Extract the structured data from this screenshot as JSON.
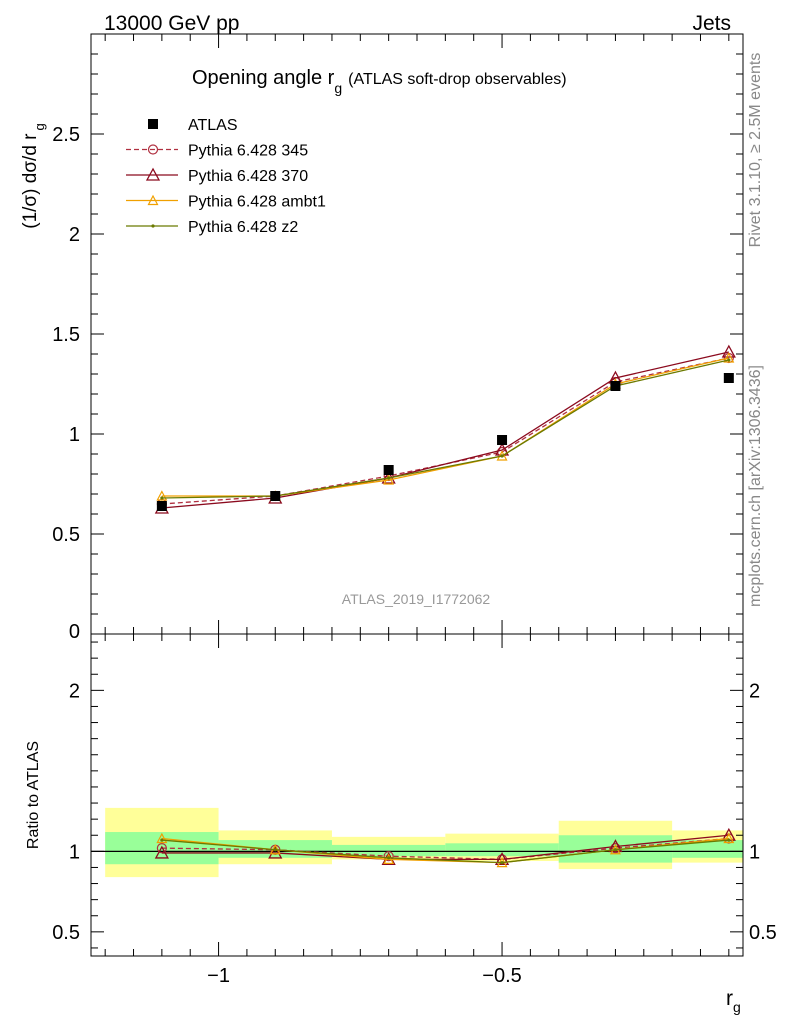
{
  "header": {
    "left": "13000 GeV pp",
    "right": "Jets"
  },
  "side_labels": {
    "rivet": "Rivet 3.1.10, ≥ 2.5M events",
    "mcplots": "mcplots.cern.ch [arXiv:1306.3436]"
  },
  "chart_data": [
    {
      "type": "line",
      "title_main": "Opening angle r",
      "title_sub": "g",
      "title_note": "(ATLAS soft-drop observables)",
      "ylabel": "(1/σ) dσ/d r",
      "ylabel_sub": "g",
      "watermark": "ATLAS_2019_I1772062",
      "xlim": [
        -1.225,
        -0.075
      ],
      "ylim": [
        0,
        3.0
      ],
      "yticks": [
        0.5,
        1,
        1.5,
        2,
        2.5
      ],
      "ytick_labels": [
        "0.5",
        "1",
        "1.5",
        "2",
        "2.5"
      ],
      "ylim_label_bottom": "0",
      "x": [
        -1.1,
        -0.9,
        -0.7,
        -0.5,
        -0.3,
        -0.1
      ],
      "data": {
        "name": "ATLAS",
        "values": [
          0.64,
          0.69,
          0.82,
          0.97,
          1.24,
          1.28
        ],
        "color": "#000000"
      },
      "series": [
        {
          "name": "Pythia 6.428 345",
          "values": [
            0.65,
            0.69,
            0.79,
            0.91,
            1.26,
            1.38
          ],
          "color": "#b03040",
          "style": "dashed-circle"
        },
        {
          "name": "Pythia 6.428 370",
          "values": [
            0.63,
            0.68,
            0.78,
            0.92,
            1.28,
            1.41
          ],
          "color": "#8b0a1e",
          "style": "solid-triangle"
        },
        {
          "name": "Pythia 6.428 ambt1",
          "values": [
            0.69,
            0.69,
            0.77,
            0.89,
            1.25,
            1.38
          ],
          "color": "#f0a000",
          "style": "solid-triangle-small"
        },
        {
          "name": "Pythia 6.428 z2",
          "values": [
            0.68,
            0.69,
            0.78,
            0.89,
            1.24,
            1.37
          ],
          "color": "#6b7a00",
          "style": "solid-dot"
        }
      ]
    },
    {
      "type": "line",
      "ylabel": "Ratio to ATLAS",
      "xlabel": "r",
      "xlabel_sub": "g",
      "xlim": [
        -1.225,
        -0.075
      ],
      "ylim": [
        0.35,
        2.35
      ],
      "yticks": [
        0.5,
        1,
        2
      ],
      "ytick_labels": [
        "0.5",
        "1",
        "2"
      ],
      "xticks": [
        -1,
        -0.5
      ],
      "xtick_labels": [
        "−1",
        "−0.5"
      ],
      "bands": {
        "x_edges": [
          -1.2,
          -1.0,
          -0.8,
          -0.6,
          -0.4,
          -0.2,
          -0.075
        ],
        "inner": [
          [
            0.92,
            1.12
          ],
          [
            0.96,
            1.07
          ],
          [
            0.97,
            1.04
          ],
          [
            0.97,
            1.05
          ],
          [
            0.93,
            1.1
          ],
          [
            0.96,
            1.07
          ]
        ],
        "outer": [
          [
            0.84,
            1.27
          ],
          [
            0.92,
            1.13
          ],
          [
            0.95,
            1.09
          ],
          [
            0.94,
            1.11
          ],
          [
            0.89,
            1.19
          ],
          [
            0.93,
            1.13
          ]
        ],
        "inner_color": "#99ff99",
        "outer_color": "#ffff99"
      },
      "x": [
        -1.1,
        -0.9,
        -0.7,
        -0.5,
        -0.3,
        -0.1
      ],
      "series": [
        {
          "name": "Pythia 6.428 345",
          "values": [
            1.02,
            1.01,
            0.97,
            0.95,
            1.02,
            1.08
          ],
          "color": "#b03040",
          "style": "dashed-circle"
        },
        {
          "name": "Pythia 6.428 370",
          "values": [
            0.99,
            0.99,
            0.95,
            0.95,
            1.03,
            1.1
          ],
          "color": "#8b0a1e",
          "style": "solid-triangle"
        },
        {
          "name": "Pythia 6.428 ambt1",
          "values": [
            1.08,
            1.01,
            0.95,
            0.93,
            1.01,
            1.08
          ],
          "color": "#f0a000",
          "style": "solid-triangle-small"
        },
        {
          "name": "Pythia 6.428 z2",
          "values": [
            1.07,
            1.01,
            0.96,
            0.93,
            1.01,
            1.07
          ],
          "color": "#6b7a00",
          "style": "solid-dot"
        }
      ]
    }
  ]
}
